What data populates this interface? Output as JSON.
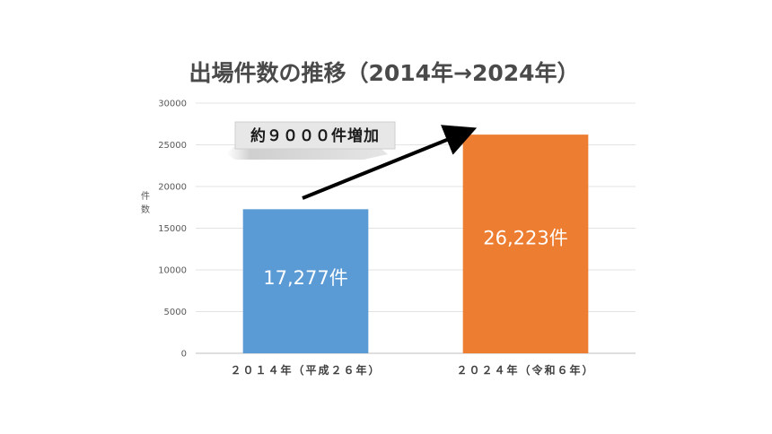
{
  "chart_data": {
    "type": "bar",
    "title": "出場件数の推移（2014年→2024年）",
    "ylabel": "件数",
    "xlabel": "",
    "categories": [
      "２０１４年（平成２６年）",
      "２０２４年（令和６年）"
    ],
    "values": [
      17277,
      26223
    ],
    "data_labels": [
      "17,277件",
      "26,223件"
    ],
    "colors": [
      "#5B9BD5",
      "#ED7D31"
    ],
    "ylim": [
      0,
      30000
    ],
    "yticks": [
      "0",
      "5000",
      "10000",
      "15000",
      "20000",
      "25000",
      "30000"
    ],
    "grid": true,
    "legend": "none",
    "annotation": "約９０００件増加"
  }
}
